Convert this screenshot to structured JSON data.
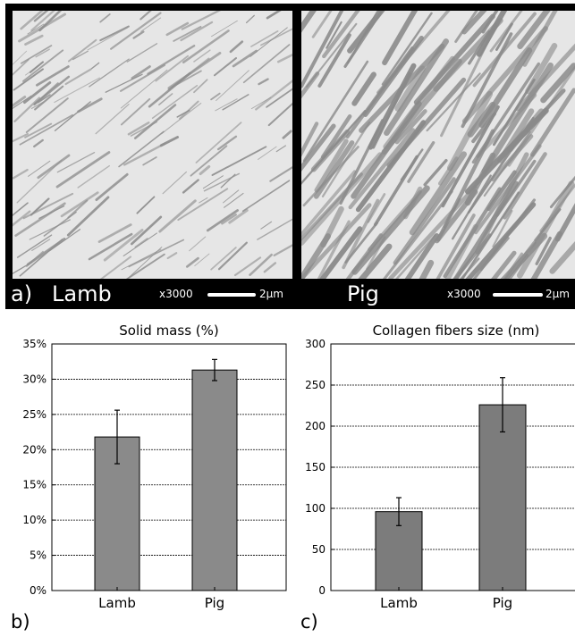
{
  "micrographs": {
    "panel_letter": "a)",
    "left": {
      "label": "Lamb",
      "magnification": "x3000",
      "scale": "2μm"
    },
    "right": {
      "label": "Pig",
      "magnification": "x3000",
      "scale": "2μm"
    }
  },
  "chart_data": [
    {
      "type": "bar",
      "panel_letter": "b)",
      "title": "Solid mass (%)",
      "categories": [
        "Lamb",
        "Pig"
      ],
      "values": [
        21.8,
        31.3
      ],
      "error": [
        3.8,
        1.5
      ],
      "ylim": [
        0,
        35
      ],
      "yticks": [
        "0%",
        "5%",
        "10%",
        "15%",
        "20%",
        "25%",
        "30%",
        "35%"
      ],
      "ytick_values": [
        0,
        5,
        10,
        15,
        20,
        25,
        30,
        35
      ],
      "grid": true,
      "bar_color": "#8a8a8a",
      "xlabel": "",
      "ylabel": ""
    },
    {
      "type": "bar",
      "panel_letter": "c)",
      "title": "Collagen fibers size (nm)",
      "categories": [
        "Lamb",
        "Pig"
      ],
      "values": [
        96,
        226
      ],
      "error": [
        17,
        33
      ],
      "ylim": [
        0,
        300
      ],
      "yticks": [
        "0",
        "50",
        "100",
        "150",
        "200",
        "250",
        "300"
      ],
      "ytick_values": [
        0,
        50,
        100,
        150,
        200,
        250,
        300
      ],
      "grid": true,
      "bar_color": "#7c7c7c",
      "xlabel": "",
      "ylabel": ""
    }
  ]
}
